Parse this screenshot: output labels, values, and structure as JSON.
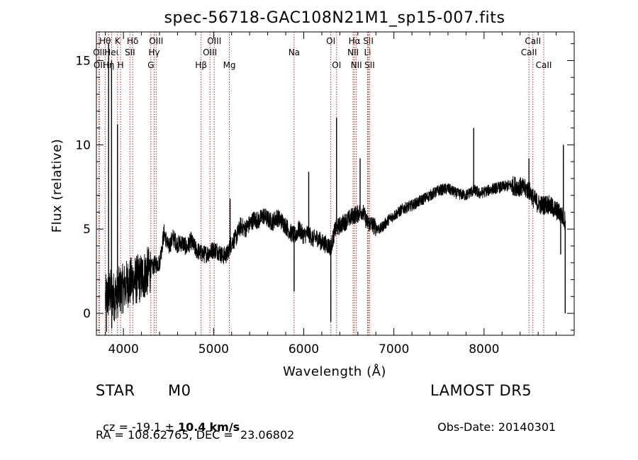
{
  "chart_data": {
    "type": "line",
    "title": "spec-56718-GAC108N21M1_sp15-007.fits",
    "xlabel": "Wavelength (Å)",
    "ylabel": "Flux (relative)",
    "xlim": [
      3700,
      9000
    ],
    "ylim": [
      -1.3,
      16.7
    ],
    "xticks": [
      4000,
      5000,
      6000,
      7000,
      8000
    ],
    "xtick_labels": [
      "4000",
      "5000",
      "6000",
      "7000",
      "8000"
    ],
    "yticks": [
      0,
      5,
      10,
      15
    ],
    "ytick_labels": [
      "0",
      "5",
      "10",
      "15"
    ],
    "grid": false,
    "line_color": "#000000",
    "marker_color": "#b22222",
    "series": [
      {
        "x": [
          3800,
          3850,
          3900,
          3950,
          4000,
          4050,
          4100,
          4150,
          4200,
          4250,
          4300,
          4350,
          4400,
          4450,
          4500,
          4550,
          4600,
          4650,
          4700,
          4750,
          4800,
          4850,
          4900,
          4950,
          5000,
          5050,
          5100,
          5150,
          5200,
          5250,
          5300,
          5350,
          5400,
          5450,
          5500,
          5550,
          5600,
          5650,
          5700,
          5750,
          5800,
          5850,
          5900,
          5950,
          6000,
          6050,
          6100,
          6150,
          6200,
          6250,
          6300,
          6350,
          6400,
          6450,
          6500,
          6550,
          6600,
          6650,
          6700,
          6750,
          6800,
          6850,
          6900,
          6950,
          7000,
          7100,
          7200,
          7300,
          7400,
          7500,
          7600,
          7700,
          7800,
          7850,
          7900,
          7950,
          8000,
          8100,
          8200,
          8300,
          8400,
          8500,
          8550,
          8600,
          8650,
          8700,
          8750,
          8800,
          8850,
          8900
        ],
        "y": [
          0.8,
          1.2,
          1.0,
          1.3,
          1.5,
          1.8,
          1.9,
          2.0,
          2.1,
          2.4,
          2.6,
          2.9,
          3.0,
          4.8,
          3.9,
          4.5,
          4.1,
          4.2,
          3.9,
          4.3,
          3.8,
          3.6,
          3.5,
          3.6,
          3.8,
          3.7,
          3.4,
          3.5,
          4.2,
          4.5,
          5.2,
          5.0,
          5.3,
          5.6,
          5.5,
          5.8,
          5.6,
          5.4,
          5.7,
          5.5,
          5.2,
          4.8,
          4.6,
          5.0,
          4.6,
          4.8,
          4.4,
          4.5,
          4.2,
          4.1,
          3.9,
          5.0,
          5.2,
          5.4,
          5.6,
          5.8,
          5.9,
          6.1,
          5.4,
          5.3,
          5.1,
          5.0,
          5.3,
          5.6,
          5.8,
          6.2,
          6.4,
          6.7,
          7.0,
          7.3,
          7.4,
          7.1,
          7.0,
          7.2,
          7.3,
          7.1,
          7.2,
          7.4,
          7.5,
          7.6,
          7.5,
          7.3,
          6.8,
          6.5,
          6.4,
          6.5,
          6.3,
          6.1,
          5.9,
          5.5
        ]
      }
    ],
    "spikes": [
      {
        "x": 3835,
        "y": 16.0
      },
      {
        "x": 3868,
        "y": 15.0
      },
      {
        "x": 3934,
        "y": 11.2
      },
      {
        "x": 5183,
        "y": 6.8
      },
      {
        "x": 6055,
        "y": 8.4
      },
      {
        "x": 6364,
        "y": 11.6
      },
      {
        "x": 6625,
        "y": 9.2
      },
      {
        "x": 7885,
        "y": 11.0
      },
      {
        "x": 8498,
        "y": 9.2
      },
      {
        "x": 8880,
        "y": 10.0
      }
    ],
    "dips": [
      {
        "x": 3810,
        "y": -1.1
      },
      {
        "x": 3870,
        "y": -0.9
      },
      {
        "x": 5893,
        "y": 1.3
      },
      {
        "x": 6300,
        "y": -0.5
      },
      {
        "x": 8850,
        "y": 3.5
      },
      {
        "x": 8900,
        "y": 0.0
      }
    ],
    "line_markers": [
      {
        "x": 3727,
        "label": "OII",
        "row": 1
      },
      {
        "x": 3733,
        "label": "OII",
        "row": 2
      },
      {
        "x": 3797,
        "label": "Hθ",
        "row": 0
      },
      {
        "x": 3835,
        "label": "Hη",
        "row": 2
      },
      {
        "x": 3869,
        "label": "Heι",
        "row": 1
      },
      {
        "x": 3934,
        "label": "K",
        "row": 0
      },
      {
        "x": 3968,
        "label": "H",
        "row": 2
      },
      {
        "x": 4072,
        "label": "SII",
        "row": 1
      },
      {
        "x": 4102,
        "label": "Hδ",
        "row": 0
      },
      {
        "x": 4304,
        "label": "G",
        "row": 2
      },
      {
        "x": 4340,
        "label": "Hγ",
        "row": 1
      },
      {
        "x": 4363,
        "label": "OIII",
        "row": 0
      },
      {
        "x": 4861,
        "label": "Hβ",
        "row": 2
      },
      {
        "x": 4959,
        "label": "OIII",
        "row": 1
      },
      {
        "x": 5007,
        "label": "OIII",
        "row": 0
      },
      {
        "x": 5175,
        "label": "Mg",
        "row": 2
      },
      {
        "x": 5893,
        "label": "Na",
        "row": 1
      },
      {
        "x": 6300,
        "label": "OI",
        "row": 0
      },
      {
        "x": 6364,
        "label": "OI",
        "row": 2
      },
      {
        "x": 6548,
        "label": "NII",
        "row": 1
      },
      {
        "x": 6563,
        "label": "Hα",
        "row": 0
      },
      {
        "x": 6583,
        "label": "NII",
        "row": 2
      },
      {
        "x": 6708,
        "label": "Li",
        "row": 1
      },
      {
        "x": 6716,
        "label": "SII",
        "row": 0
      },
      {
        "x": 6731,
        "label": "SII",
        "row": 2
      },
      {
        "x": 8498,
        "label": "CaII",
        "row": 1
      },
      {
        "x": 8542,
        "label": "CaII",
        "row": 0
      },
      {
        "x": 8662,
        "label": "CaII",
        "row": 2
      }
    ]
  },
  "info": {
    "class": "STAR",
    "subclass": "M0",
    "survey": "LAMOST DR5",
    "cz_prefix": "cz = ",
    "cz_value": "-19.1",
    "cz_pm": " ± ",
    "cz_error": "10.4",
    "cz_unit": "km/s",
    "obs_date_label": "Obs-Date:",
    "obs_date": "20140301",
    "radec": "RA = 108.62765, DEC =  23.06802"
  }
}
